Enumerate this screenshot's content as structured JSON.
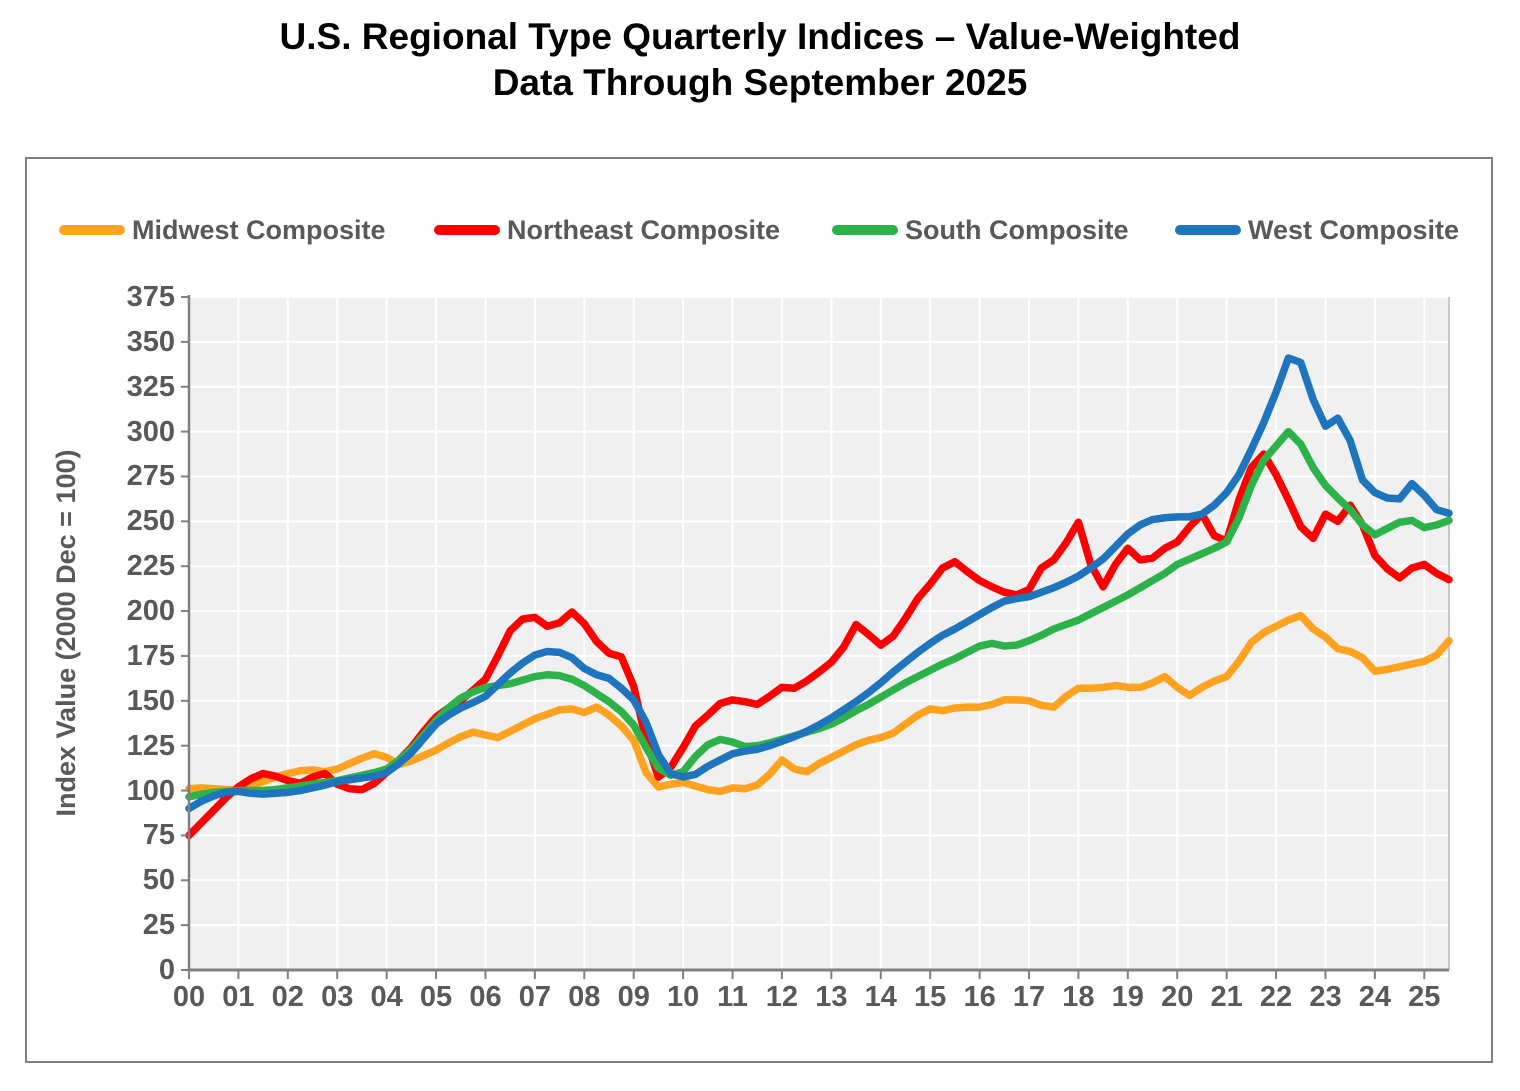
{
  "title": {
    "line1": "U.S. Regional Type Quarterly Indices – Value-Weighted",
    "line2": "Data Through September 2025"
  },
  "colors": {
    "plot_bg": "#f0f0f0",
    "grid": "#ffffff",
    "axis": "#808080",
    "plot_right_border": "#c8c8c8",
    "tick_label": "#595959",
    "box_border": "#7f7f7f"
  },
  "chart_data": {
    "type": "line",
    "title": "U.S. Regional Type Quarterly Indices – Value-Weighted",
    "subtitle": "Data Through September 2025",
    "frequency": "quarterly",
    "x_start": "2000 Q1",
    "x_end": "2025 Q3",
    "x_span_years": 25.5,
    "x_tick_labels": [
      "00",
      "01",
      "02",
      "03",
      "04",
      "05",
      "06",
      "07",
      "08",
      "09",
      "10",
      "11",
      "12",
      "13",
      "14",
      "15",
      "16",
      "17",
      "18",
      "19",
      "20",
      "21",
      "22",
      "23",
      "24",
      "25"
    ],
    "y_axis": {
      "label": "Index Value (2000 Dec = 100)",
      "min": 0,
      "max": 375,
      "step": 25
    },
    "grid": true,
    "legend_position": "top",
    "series": [
      {
        "name": "Midwest Composite",
        "color": "#ffa21f",
        "values": [
          101,
          101.5,
          101,
          100.5,
          100.5,
          102.5,
          105,
          107.5,
          109.5,
          111,
          111.5,
          110.5,
          112,
          115,
          118,
          120.5,
          118.5,
          114.5,
          116.5,
          119.5,
          122.5,
          126.5,
          130,
          132.5,
          131,
          129.5,
          133,
          136.5,
          140,
          142.5,
          145,
          145.5,
          143.5,
          146.5,
          142,
          136,
          128,
          110,
          102,
          103.5,
          104.5,
          102.5,
          100.5,
          99.5,
          101.5,
          101,
          103,
          109,
          117,
          112,
          110.5,
          115,
          118.5,
          122,
          125.5,
          128,
          129.5,
          132,
          137,
          142,
          145.5,
          144.5,
          146,
          146.5,
          146.5,
          148,
          150.5,
          150.5,
          150,
          147.5,
          146.5,
          152.5,
          157,
          157,
          157.5,
          158.5,
          157.5,
          157.5,
          160,
          163.5,
          157.5,
          153,
          157.5,
          161,
          163.5,
          172,
          182.5,
          188,
          191.5,
          195,
          197.5,
          190,
          185.5,
          179,
          177.5,
          174,
          166.5,
          167.5,
          169,
          170.5,
          172,
          175.5,
          183.5
        ]
      },
      {
        "name": "Northeast Composite",
        "color": "#fe0000",
        "values": [
          75,
          82,
          89,
          96,
          102,
          106.5,
          109.5,
          108,
          105.5,
          104,
          107.5,
          109.5,
          103.5,
          101,
          100.5,
          104,
          110,
          117,
          124,
          133,
          141,
          146,
          150,
          156,
          162,
          175,
          189,
          195.5,
          196.5,
          191.5,
          193.5,
          199.5,
          193,
          183,
          176.5,
          174.5,
          158,
          128,
          107.5,
          113,
          124,
          136,
          142,
          148.5,
          150.5,
          149.5,
          148,
          152.5,
          157.5,
          157,
          161,
          166,
          171.5,
          180,
          192.5,
          187,
          181,
          186,
          196,
          207,
          215,
          224,
          227.5,
          222,
          217,
          213.5,
          210.5,
          209,
          212,
          224,
          228.5,
          238,
          249.5,
          226,
          213.5,
          226,
          235,
          228.5,
          229.5,
          235,
          238.5,
          247,
          254,
          242,
          239,
          262,
          280,
          287.5,
          276,
          262,
          247,
          240.5,
          254,
          250,
          259,
          248,
          231,
          223.5,
          218.5,
          224,
          226,
          221,
          217.5
        ]
      },
      {
        "name": "South Composite",
        "color": "#2db24a",
        "values": [
          96.5,
          98,
          99,
          99.5,
          100,
          100,
          100,
          100.5,
          101.5,
          102.5,
          103.5,
          104.5,
          105.5,
          107,
          108.5,
          110,
          112,
          117,
          123,
          131,
          139,
          146,
          151.5,
          155,
          157.5,
          158.5,
          159.5,
          161.5,
          163.5,
          164.5,
          164,
          162,
          158.5,
          154,
          149.5,
          144,
          136.5,
          124,
          112.5,
          108.5,
          110.5,
          119,
          125.5,
          128.5,
          127,
          124.5,
          125,
          126.5,
          128.5,
          130.5,
          132.5,
          134.5,
          137,
          140.5,
          144.5,
          148,
          152,
          156,
          160,
          163.5,
          167,
          170.5,
          173.5,
          177,
          180.5,
          182,
          180.5,
          181,
          183.5,
          186.5,
          190,
          192.5,
          195,
          198.5,
          202,
          205.5,
          209,
          213,
          217,
          221,
          226,
          229,
          232,
          235,
          238.5,
          252,
          270,
          284,
          292,
          300,
          293,
          280,
          270,
          263,
          256.5,
          248,
          242.5,
          246,
          249.5,
          250.5,
          246.5,
          248,
          250.5
        ]
      },
      {
        "name": "West Composite",
        "color": "#1e74bd",
        "values": [
          90,
          94,
          97,
          99,
          99.5,
          98.5,
          98,
          98.5,
          99,
          100,
          101.5,
          103,
          105,
          106,
          107,
          108,
          110,
          115,
          121,
          129,
          137,
          142,
          146,
          149,
          152.5,
          159,
          165.5,
          171,
          175.5,
          177.5,
          177,
          174,
          168,
          164.5,
          162.5,
          157,
          150.5,
          138,
          120,
          109.5,
          107.5,
          109,
          113.5,
          117,
          120.5,
          122,
          123,
          125,
          127.5,
          130,
          133,
          136.5,
          140.5,
          145,
          149.5,
          154.5,
          160,
          166,
          171.5,
          177,
          182,
          186.5,
          190,
          194,
          198,
          202,
          205.5,
          207,
          208,
          210.5,
          213,
          216,
          219.5,
          224,
          229,
          236,
          243,
          248,
          251,
          252,
          252.5,
          252.5,
          254,
          259,
          266,
          276,
          290,
          305,
          322,
          341,
          338.5,
          318,
          303,
          307.5,
          295,
          273,
          266,
          263,
          262.5,
          271,
          264.5,
          256.5,
          254.5
        ]
      }
    ]
  }
}
